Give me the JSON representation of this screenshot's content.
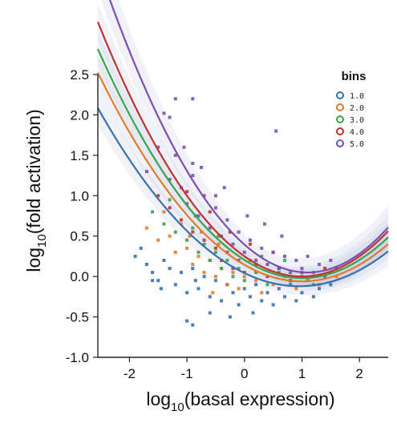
{
  "chart_data": {
    "type": "scatter",
    "xlabel": "log10(basal expression)",
    "ylabel": "log10(fold activation)",
    "xlabel_parts": {
      "pre": "log",
      "sub": "10",
      "post": "(basal expression)"
    },
    "ylabel_parts": {
      "pre": "log",
      "sub": "10",
      "post": "(fold activation)"
    },
    "xlim": [
      -2.55,
      2.5
    ],
    "ylim": [
      -1.0,
      2.5
    ],
    "x_ticks": [
      -2,
      -1,
      0,
      1,
      2
    ],
    "x_tick_labels": [
      "-2",
      "-1",
      "0",
      "1",
      "2"
    ],
    "y_ticks": [
      2.5,
      2.0,
      1.5,
      1.0,
      0.5,
      0.0,
      -0.5,
      -1.0
    ],
    "y_tick_labels": [
      "2.5",
      "2.0",
      "1.5",
      "1.0",
      "0.5",
      "0.0",
      "-0.5",
      "-1.0"
    ],
    "legend": {
      "title": "bins",
      "position": "top-right"
    },
    "grid": false,
    "series": [
      {
        "name": "1.0",
        "color": "#3a6fb0",
        "fit": {
          "a": 0.18,
          "vertex_x": 0.95,
          "vertex_y": -0.12
        },
        "band": 0.08
      },
      {
        "name": "2.0",
        "color": "#e07b2c",
        "fit": {
          "a": 0.205,
          "vertex_x": 1.0,
          "vertex_y": -0.06
        },
        "band": 0.08
      },
      {
        "name": "3.0",
        "color": "#3aa24a",
        "fit": {
          "a": 0.225,
          "vertex_x": 1.0,
          "vertex_y": -0.02
        },
        "band": 0.08
      },
      {
        "name": "4.0",
        "color": "#c0322f",
        "fit": {
          "a": 0.25,
          "vertex_x": 1.0,
          "vertex_y": 0.0
        },
        "band": 0.09
      },
      {
        "name": "5.0",
        "color": "#7b4fb0",
        "fit": {
          "a": 0.285,
          "vertex_x": 1.1,
          "vertex_y": 0.05
        },
        "band": 0.12
      }
    ],
    "scatter_points": [
      {
        "series": "1.0",
        "x": -1.9,
        "y": 0.25
      },
      {
        "series": "1.0",
        "x": -1.7,
        "y": 0.15
      },
      {
        "series": "1.0",
        "x": -1.6,
        "y": 0.05
      },
      {
        "series": "1.0",
        "x": -1.5,
        "y": -0.05
      },
      {
        "series": "1.0",
        "x": -1.4,
        "y": 0.2
      },
      {
        "series": "1.0",
        "x": -1.3,
        "y": 0.1
      },
      {
        "series": "1.0",
        "x": -1.2,
        "y": -0.1
      },
      {
        "series": "1.0",
        "x": -1.1,
        "y": 0.05
      },
      {
        "series": "1.0",
        "x": -1.0,
        "y": -0.2
      },
      {
        "series": "1.0",
        "x": -0.9,
        "y": 0.1
      },
      {
        "series": "1.0",
        "x": -0.8,
        "y": -0.15
      },
      {
        "series": "1.0",
        "x": -0.7,
        "y": 0.0
      },
      {
        "series": "1.0",
        "x": -0.6,
        "y": -0.25
      },
      {
        "series": "1.0",
        "x": -0.5,
        "y": -0.05
      },
      {
        "series": "1.0",
        "x": -0.4,
        "y": -0.3
      },
      {
        "series": "1.0",
        "x": -0.3,
        "y": -0.1
      },
      {
        "series": "1.0",
        "x": -0.2,
        "y": -0.2
      },
      {
        "series": "1.0",
        "x": -0.1,
        "y": -0.35
      },
      {
        "series": "1.0",
        "x": 0.0,
        "y": -0.15
      },
      {
        "series": "1.0",
        "x": 0.1,
        "y": -0.25
      },
      {
        "series": "1.0",
        "x": 0.2,
        "y": -0.1
      },
      {
        "series": "1.0",
        "x": 0.3,
        "y": -0.3
      },
      {
        "series": "1.0",
        "x": 0.4,
        "y": -0.2
      },
      {
        "series": "1.0",
        "x": 0.5,
        "y": -0.35
      },
      {
        "series": "1.0",
        "x": 0.6,
        "y": -0.15
      },
      {
        "series": "1.0",
        "x": 0.7,
        "y": -0.25
      },
      {
        "series": "1.0",
        "x": 0.8,
        "y": -0.1
      },
      {
        "series": "1.0",
        "x": 0.9,
        "y": -0.3
      },
      {
        "series": "1.0",
        "x": 1.0,
        "y": -0.2
      },
      {
        "series": "1.0",
        "x": 1.1,
        "y": -0.05
      },
      {
        "series": "1.0",
        "x": 1.2,
        "y": -0.25
      },
      {
        "series": "1.0",
        "x": 1.3,
        "y": -0.15
      },
      {
        "series": "1.0",
        "x": 1.5,
        "y": -0.1
      },
      {
        "series": "1.0",
        "x": -1.0,
        "y": -0.55
      },
      {
        "series": "1.0",
        "x": -0.9,
        "y": -0.6
      },
      {
        "series": "1.0",
        "x": -0.6,
        "y": -0.45
      },
      {
        "series": "1.0",
        "x": -1.6,
        "y": -0.05
      },
      {
        "series": "1.0",
        "x": -0.25,
        "y": -0.5
      },
      {
        "series": "1.0",
        "x": 0.15,
        "y": -0.45
      },
      {
        "series": "1.0",
        "x": -1.8,
        "y": 0.35
      },
      {
        "series": "1.0",
        "x": -1.45,
        "y": -0.15
      },
      {
        "series": "1.0",
        "x": -0.85,
        "y": -0.05
      },
      {
        "series": "2.0",
        "x": -1.7,
        "y": 0.6
      },
      {
        "series": "2.0",
        "x": -1.5,
        "y": 0.45
      },
      {
        "series": "2.0",
        "x": -1.3,
        "y": 0.5
      },
      {
        "series": "2.0",
        "x": -1.2,
        "y": 0.3
      },
      {
        "series": "2.0",
        "x": -1.0,
        "y": 0.35
      },
      {
        "series": "2.0",
        "x": -0.9,
        "y": 0.15
      },
      {
        "series": "2.0",
        "x": -0.8,
        "y": 0.25
      },
      {
        "series": "2.0",
        "x": -0.7,
        "y": 0.05
      },
      {
        "series": "2.0",
        "x": -0.6,
        "y": 0.2
      },
      {
        "series": "2.0",
        "x": -0.5,
        "y": 0.0
      },
      {
        "series": "2.0",
        "x": -0.4,
        "y": 0.1
      },
      {
        "series": "2.0",
        "x": -0.3,
        "y": -0.1
      },
      {
        "series": "2.0",
        "x": -0.2,
        "y": 0.05
      },
      {
        "series": "2.0",
        "x": -0.1,
        "y": -0.15
      },
      {
        "series": "2.0",
        "x": 0.0,
        "y": 0.0
      },
      {
        "series": "2.0",
        "x": 0.2,
        "y": -0.05
      },
      {
        "series": "2.0",
        "x": 0.3,
        "y": -0.2
      },
      {
        "series": "2.0",
        "x": 0.5,
        "y": -0.1
      },
      {
        "series": "2.0",
        "x": 0.7,
        "y": 0.0
      },
      {
        "series": "2.0",
        "x": 0.9,
        "y": -0.15
      },
      {
        "series": "2.0",
        "x": 1.1,
        "y": -0.05
      },
      {
        "series": "2.0",
        "x": 1.3,
        "y": -0.1
      },
      {
        "series": "2.0",
        "x": 1.6,
        "y": 0.0
      },
      {
        "series": "2.0",
        "x": -1.1,
        "y": 0.65
      },
      {
        "series": "2.0",
        "x": -0.75,
        "y": 0.55
      },
      {
        "series": "2.0",
        "x": -0.45,
        "y": 0.4
      },
      {
        "series": "2.0",
        "x": -1.4,
        "y": 0.8
      },
      {
        "series": "2.0",
        "x": -0.95,
        "y": 0.5
      },
      {
        "series": "2.0",
        "x": 0.1,
        "y": 0.2
      },
      {
        "series": "2.0",
        "x": -0.55,
        "y": -0.2
      },
      {
        "series": "3.0",
        "x": -1.6,
        "y": 0.8
      },
      {
        "series": "3.0",
        "x": -1.4,
        "y": 0.65
      },
      {
        "series": "3.0",
        "x": -1.2,
        "y": 0.55
      },
      {
        "series": "3.0",
        "x": -1.0,
        "y": 0.45
      },
      {
        "series": "3.0",
        "x": -0.9,
        "y": 0.6
      },
      {
        "series": "3.0",
        "x": -0.8,
        "y": 0.3
      },
      {
        "series": "3.0",
        "x": -0.7,
        "y": 0.4
      },
      {
        "series": "3.0",
        "x": -0.6,
        "y": 0.2
      },
      {
        "series": "3.0",
        "x": -0.5,
        "y": 0.3
      },
      {
        "series": "3.0",
        "x": -0.4,
        "y": 0.1
      },
      {
        "series": "3.0",
        "x": -0.3,
        "y": 0.2
      },
      {
        "series": "3.0",
        "x": -0.2,
        "y": 0.0
      },
      {
        "series": "3.0",
        "x": -0.1,
        "y": 0.1
      },
      {
        "series": "3.0",
        "x": 0.0,
        "y": -0.05
      },
      {
        "series": "3.0",
        "x": 0.2,
        "y": 0.05
      },
      {
        "series": "3.0",
        "x": 0.4,
        "y": -0.1
      },
      {
        "series": "3.0",
        "x": 0.6,
        "y": 0.05
      },
      {
        "series": "3.0",
        "x": 0.8,
        "y": -0.05
      },
      {
        "series": "3.0",
        "x": 1.0,
        "y": 0.0
      },
      {
        "series": "3.0",
        "x": 1.2,
        "y": -0.1
      },
      {
        "series": "3.0",
        "x": 1.5,
        "y": 0.05
      },
      {
        "series": "3.0",
        "x": -1.3,
        "y": 0.95
      },
      {
        "series": "3.0",
        "x": -0.85,
        "y": 0.75
      },
      {
        "series": "3.0",
        "x": -0.45,
        "y": 0.5
      },
      {
        "series": "3.0",
        "x": 0.3,
        "y": 0.25
      },
      {
        "series": "3.0",
        "x": 0.7,
        "y": 0.2
      },
      {
        "series": "4.0",
        "x": -1.5,
        "y": 1.0
      },
      {
        "series": "4.0",
        "x": -1.3,
        "y": 0.85
      },
      {
        "series": "4.0",
        "x": -1.1,
        "y": 0.7
      },
      {
        "series": "4.0",
        "x": -0.9,
        "y": 0.55
      },
      {
        "series": "4.0",
        "x": -0.7,
        "y": 0.45
      },
      {
        "series": "4.0",
        "x": -0.5,
        "y": 0.35
      },
      {
        "series": "4.0",
        "x": -0.4,
        "y": 0.2
      },
      {
        "series": "4.0",
        "x": -0.3,
        "y": 0.3
      },
      {
        "series": "4.0",
        "x": -0.2,
        "y": 0.1
      },
      {
        "series": "4.0",
        "x": -0.1,
        "y": 0.2
      },
      {
        "series": "4.0",
        "x": 0.0,
        "y": 0.05
      },
      {
        "series": "4.0",
        "x": 0.2,
        "y": 0.15
      },
      {
        "series": "4.0",
        "x": 0.4,
        "y": 0.0
      },
      {
        "series": "4.0",
        "x": 0.6,
        "y": 0.1
      },
      {
        "series": "4.0",
        "x": 0.8,
        "y": -0.05
      },
      {
        "series": "4.0",
        "x": 1.0,
        "y": 0.05
      },
      {
        "series": "4.0",
        "x": 1.2,
        "y": 0.0
      },
      {
        "series": "4.0",
        "x": 1.4,
        "y": 0.1
      },
      {
        "series": "4.0",
        "x": -1.0,
        "y": 1.05
      },
      {
        "series": "4.0",
        "x": -0.6,
        "y": 0.8
      },
      {
        "series": "4.0",
        "x": -0.25,
        "y": 0.55
      },
      {
        "series": "4.0",
        "x": 0.1,
        "y": 0.4
      },
      {
        "series": "4.0",
        "x": 0.5,
        "y": 0.3
      },
      {
        "series": "5.0",
        "x": -1.7,
        "y": 1.3
      },
      {
        "series": "5.0",
        "x": -1.5,
        "y": 1.6
      },
      {
        "series": "5.0",
        "x": -1.3,
        "y": 1.2
      },
      {
        "series": "5.0",
        "x": -1.2,
        "y": 1.5
      },
      {
        "series": "5.0",
        "x": -1.1,
        "y": 1.1
      },
      {
        "series": "5.0",
        "x": -1.0,
        "y": 0.9
      },
      {
        "series": "5.0",
        "x": -0.9,
        "y": 1.25
      },
      {
        "series": "5.0",
        "x": -0.8,
        "y": 0.75
      },
      {
        "series": "5.0",
        "x": -0.7,
        "y": 1.0
      },
      {
        "series": "5.0",
        "x": -0.6,
        "y": 0.6
      },
      {
        "series": "5.0",
        "x": -0.5,
        "y": 0.85
      },
      {
        "series": "5.0",
        "x": -0.4,
        "y": 0.5
      },
      {
        "series": "5.0",
        "x": -0.3,
        "y": 0.7
      },
      {
        "series": "5.0",
        "x": -0.2,
        "y": 0.4
      },
      {
        "series": "5.0",
        "x": -0.1,
        "y": 0.55
      },
      {
        "series": "5.0",
        "x": 0.0,
        "y": 0.3
      },
      {
        "series": "5.0",
        "x": 0.1,
        "y": 0.45
      },
      {
        "series": "5.0",
        "x": 0.2,
        "y": 0.2
      },
      {
        "series": "5.0",
        "x": 0.3,
        "y": 0.35
      },
      {
        "series": "5.0",
        "x": 0.4,
        "y": 0.15
      },
      {
        "series": "5.0",
        "x": 0.5,
        "y": 0.3
      },
      {
        "series": "5.0",
        "x": 0.6,
        "y": 0.1
      },
      {
        "series": "5.0",
        "x": 0.7,
        "y": 0.25
      },
      {
        "series": "5.0",
        "x": 0.8,
        "y": 0.05
      },
      {
        "series": "5.0",
        "x": 0.9,
        "y": 0.2
      },
      {
        "series": "5.0",
        "x": 1.0,
        "y": 0.1
      },
      {
        "series": "5.0",
        "x": 1.1,
        "y": 0.25
      },
      {
        "series": "5.0",
        "x": 1.2,
        "y": 0.05
      },
      {
        "series": "5.0",
        "x": 1.3,
        "y": 0.15
      },
      {
        "series": "5.0",
        "x": 1.4,
        "y": 0.0
      },
      {
        "series": "5.0",
        "x": 1.5,
        "y": 0.2
      },
      {
        "series": "5.0",
        "x": 1.6,
        "y": 0.1
      },
      {
        "series": "5.0",
        "x": -1.2,
        "y": 2.2
      },
      {
        "series": "5.0",
        "x": -0.9,
        "y": 2.2
      },
      {
        "series": "5.0",
        "x": -1.3,
        "y": 1.97
      },
      {
        "series": "5.0",
        "x": -1.4,
        "y": 2.02
      },
      {
        "series": "5.0",
        "x": 0.55,
        "y": 1.8
      },
      {
        "series": "5.0",
        "x": -0.9,
        "y": 1.4
      },
      {
        "series": "5.0",
        "x": -0.75,
        "y": 1.35
      },
      {
        "series": "5.0",
        "x": -0.5,
        "y": 1.0
      },
      {
        "series": "5.0",
        "x": -0.35,
        "y": 1.1
      },
      {
        "series": "5.0",
        "x": 0.05,
        "y": 0.75
      },
      {
        "series": "5.0",
        "x": 0.35,
        "y": 0.65
      },
      {
        "series": "5.0",
        "x": 0.65,
        "y": 0.5
      },
      {
        "series": "5.0",
        "x": -1.05,
        "y": 1.6
      }
    ]
  }
}
